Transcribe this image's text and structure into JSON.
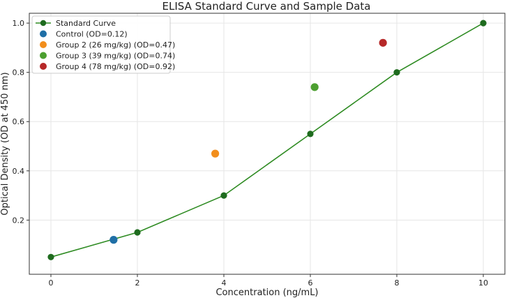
{
  "chart_data": {
    "type": "scatter",
    "title": "ELISA Standard Curve and Sample Data",
    "xlabel": "Concentration (ng/mL)",
    "ylabel": "Optical Density (OD at 450 nm)",
    "xlim": [
      -0.5,
      10.5
    ],
    "ylim": [
      -0.02,
      1.04
    ],
    "xticks": [
      0,
      2,
      4,
      6,
      8,
      10
    ],
    "yticks": [
      0.2,
      0.4,
      0.6,
      0.8,
      1.0
    ],
    "xtick_labels": [
      "0",
      "2",
      "4",
      "6",
      "8",
      "10"
    ],
    "ytick_labels": [
      "0.2",
      "0.4",
      "0.6",
      "0.8",
      "1.0"
    ],
    "grid": true,
    "legend_position": "top-left",
    "standard_curve": {
      "name": "Standard Curve",
      "color": "#1e6b1e",
      "line_color": "#2e8b22",
      "x": [
        0,
        2,
        4,
        6,
        8,
        10
      ],
      "y": [
        0.05,
        0.15,
        0.3,
        0.55,
        0.8,
        1.0
      ]
    },
    "samples": [
      {
        "name": "Control (OD=0.12)",
        "x": 1.45,
        "y": 0.12,
        "color": "#1f6fa6"
      },
      {
        "name": "Group 2 (26 mg/kg) (OD=0.47)",
        "x": 3.8,
        "y": 0.47,
        "color": "#f28e1c"
      },
      {
        "name": "Group 3 (39 mg/kg) (OD=0.74)",
        "x": 6.1,
        "y": 0.74,
        "color": "#4c9f30"
      },
      {
        "name": "Group 4 (78 mg/kg) (OD=0.92)",
        "x": 7.68,
        "y": 0.92,
        "color": "#b62828"
      }
    ]
  }
}
